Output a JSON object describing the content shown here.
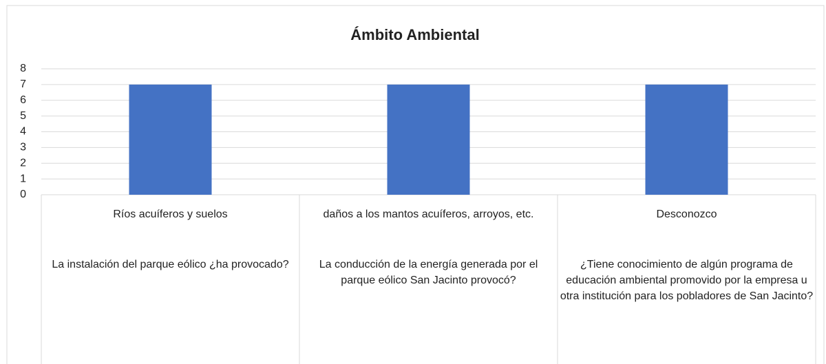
{
  "chart_data": {
    "type": "bar",
    "title": "Ámbito Ambiental",
    "categories": [
      "Ríos acuíferos y suelos",
      "daños a los mantos acuíferos, arroyos, etc.",
      "Desconozco"
    ],
    "category_groups": [
      "La instalación del parque eólico ¿ha provocado?",
      "La conducción de la energía generada por el parque eólico San Jacinto provocó?",
      "¿Tiene conocimiento de algún programa de educación ambiental promovido por la empresa u otra institución para los pobladores de San Jacinto?"
    ],
    "values": [
      7,
      7,
      7
    ],
    "color": "#4472c4",
    "ylim": [
      0,
      8
    ],
    "yticks": [
      0,
      1,
      2,
      3,
      4,
      5,
      6,
      7,
      8
    ],
    "grid": true
  }
}
